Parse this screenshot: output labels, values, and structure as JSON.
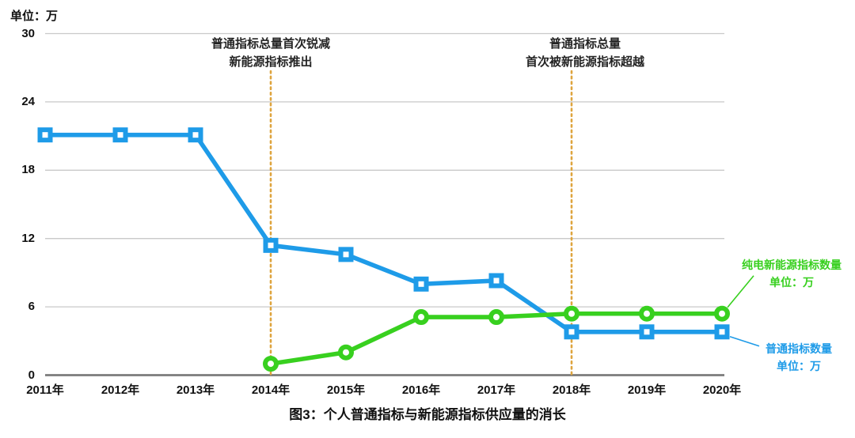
{
  "figure_title": "图3：个人普通指标与新能源指标供应量的消长",
  "unit_label": "单位：万",
  "callouts": {
    "new_energy": {
      "line1": "纯电新能源指标数量",
      "line2": "单位：万"
    },
    "ordinary": {
      "line1": "普通指标数量",
      "line2": "单位：万"
    }
  },
  "colors": {
    "blue": "#1E9BE8",
    "green": "#38D01F",
    "annotation_line": "#DEA43E",
    "grid": "#C9C9C9",
    "axis": "#7B7B7B",
    "text": "#111111"
  },
  "chart_data": {
    "type": "line",
    "title": "图3：个人普通指标与新能源指标供应量的消长",
    "unit": "万",
    "categories": [
      "2011年",
      "2012年",
      "2013年",
      "2014年",
      "2015年",
      "2016年",
      "2017年",
      "2018年",
      "2019年",
      "2020年"
    ],
    "yticks": [
      0,
      6,
      12,
      18,
      24,
      30
    ],
    "ylim": [
      0,
      30
    ],
    "grid": true,
    "legend_position": "right-callouts",
    "series": [
      {
        "name": "普通指标数量",
        "unit": "万",
        "marker": "square",
        "color_key": "blue",
        "values": [
          21.1,
          21.1,
          21.1,
          11.4,
          10.6,
          8.0,
          8.3,
          3.8,
          3.8,
          3.8
        ]
      },
      {
        "name": "纯电新能源指标数量",
        "unit": "万",
        "marker": "circle",
        "color_key": "green",
        "values": [
          null,
          null,
          null,
          1.0,
          2.0,
          5.1,
          5.1,
          5.4,
          5.4,
          5.4
        ]
      }
    ],
    "annotations": [
      {
        "year": "2014年",
        "lines": [
          "普通指标总量首次锐减",
          "新能源指标推出"
        ]
      },
      {
        "year": "2018年",
        "lines": [
          "普通指标总量",
          "首次被新能源指标超越"
        ]
      }
    ]
  }
}
